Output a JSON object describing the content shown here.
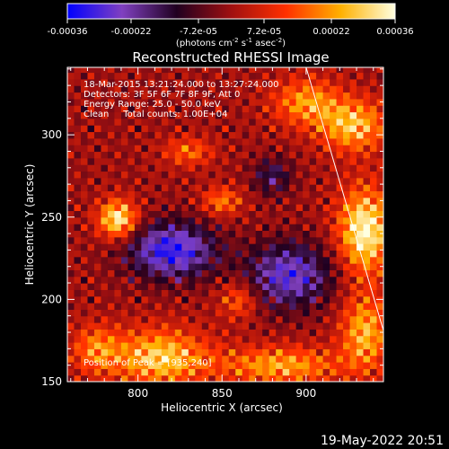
{
  "chart_data": {
    "type": "heatmap",
    "title": "Reconstructed RHESSI Image",
    "xlabel": "Heliocentric X (arcsec)",
    "ylabel": "Heliocentric Y (arcsec)",
    "xlim": [
      758,
      946
    ],
    "ylim": [
      150,
      341
    ],
    "xticks": [
      800,
      850,
      900
    ],
    "yticks": [
      150,
      200,
      250,
      300
    ],
    "colorbar": {
      "label_html": "(photons cm<tspan dy='-4' font-size='7'>-2</tspan><tspan dy='4'> s</tspan><tspan dy='-4' font-size='7'>-1</tspan><tspan dy='4'> asec</tspan><tspan dy='-4' font-size='7'>-2</tspan><tspan dy='4'>)</tspan>",
      "ticks": [
        "-0.00036",
        "-0.00022",
        "-7.2e-05",
        "7.2e-05",
        "0.00022",
        "0.00036"
      ],
      "range": [
        -0.00036,
        0.00036
      ],
      "colors": [
        "#0000ff",
        "#8040c0",
        "#200020",
        "#a01010",
        "#ff3000",
        "#ffb000",
        "#ffffe0"
      ]
    },
    "annotations": [
      "18-Mar-2015 13:21:24.000 to 13:27:24.000",
      "Detectors: 3F 5F 6F 7F 8F 9F, Att 0",
      "Energy Range: 25.0 - 50.0 keV",
      "Clean     Total counts: 1.00E+04"
    ],
    "peak_label": "Position of Peak = [935,240]",
    "sources": [
      {
        "x": 935,
        "y": 242,
        "sx": 11,
        "sy": 18,
        "amp": 1.0
      },
      {
        "x": 788,
        "y": 249,
        "sx": 8,
        "sy": 8,
        "amp": 0.95
      },
      {
        "x": 928,
        "y": 306,
        "sx": 14,
        "sy": 11,
        "amp": 0.75
      },
      {
        "x": 900,
        "y": 320,
        "sx": 14,
        "sy": 10,
        "amp": 0.6
      },
      {
        "x": 813,
        "y": 165,
        "sx": 20,
        "sy": 12,
        "amp": 0.8
      },
      {
        "x": 775,
        "y": 170,
        "sx": 10,
        "sy": 10,
        "amp": 0.5
      },
      {
        "x": 885,
        "y": 160,
        "sx": 25,
        "sy": 8,
        "amp": 0.65
      },
      {
        "x": 935,
        "y": 180,
        "sx": 10,
        "sy": 16,
        "amp": 0.7
      },
      {
        "x": 850,
        "y": 260,
        "sx": 8,
        "sy": 6,
        "amp": 0.5
      },
      {
        "x": 830,
        "y": 290,
        "sx": 10,
        "sy": 6,
        "amp": 0.45
      },
      {
        "x": 860,
        "y": 200,
        "sx": 8,
        "sy": 8,
        "amp": 0.45
      },
      {
        "x": 820,
        "y": 230,
        "sx": 18,
        "sy": 12,
        "amp": -0.9
      },
      {
        "x": 890,
        "y": 215,
        "sx": 18,
        "sy": 14,
        "amp": -0.75
      },
      {
        "x": 880,
        "y": 275,
        "sx": 8,
        "sy": 8,
        "amp": -0.45
      }
    ],
    "limb_line": {
      "x": [
        900,
        946
      ],
      "y": [
        341,
        181
      ]
    }
  },
  "footer": {
    "date": "19-May-2022 20:51"
  }
}
